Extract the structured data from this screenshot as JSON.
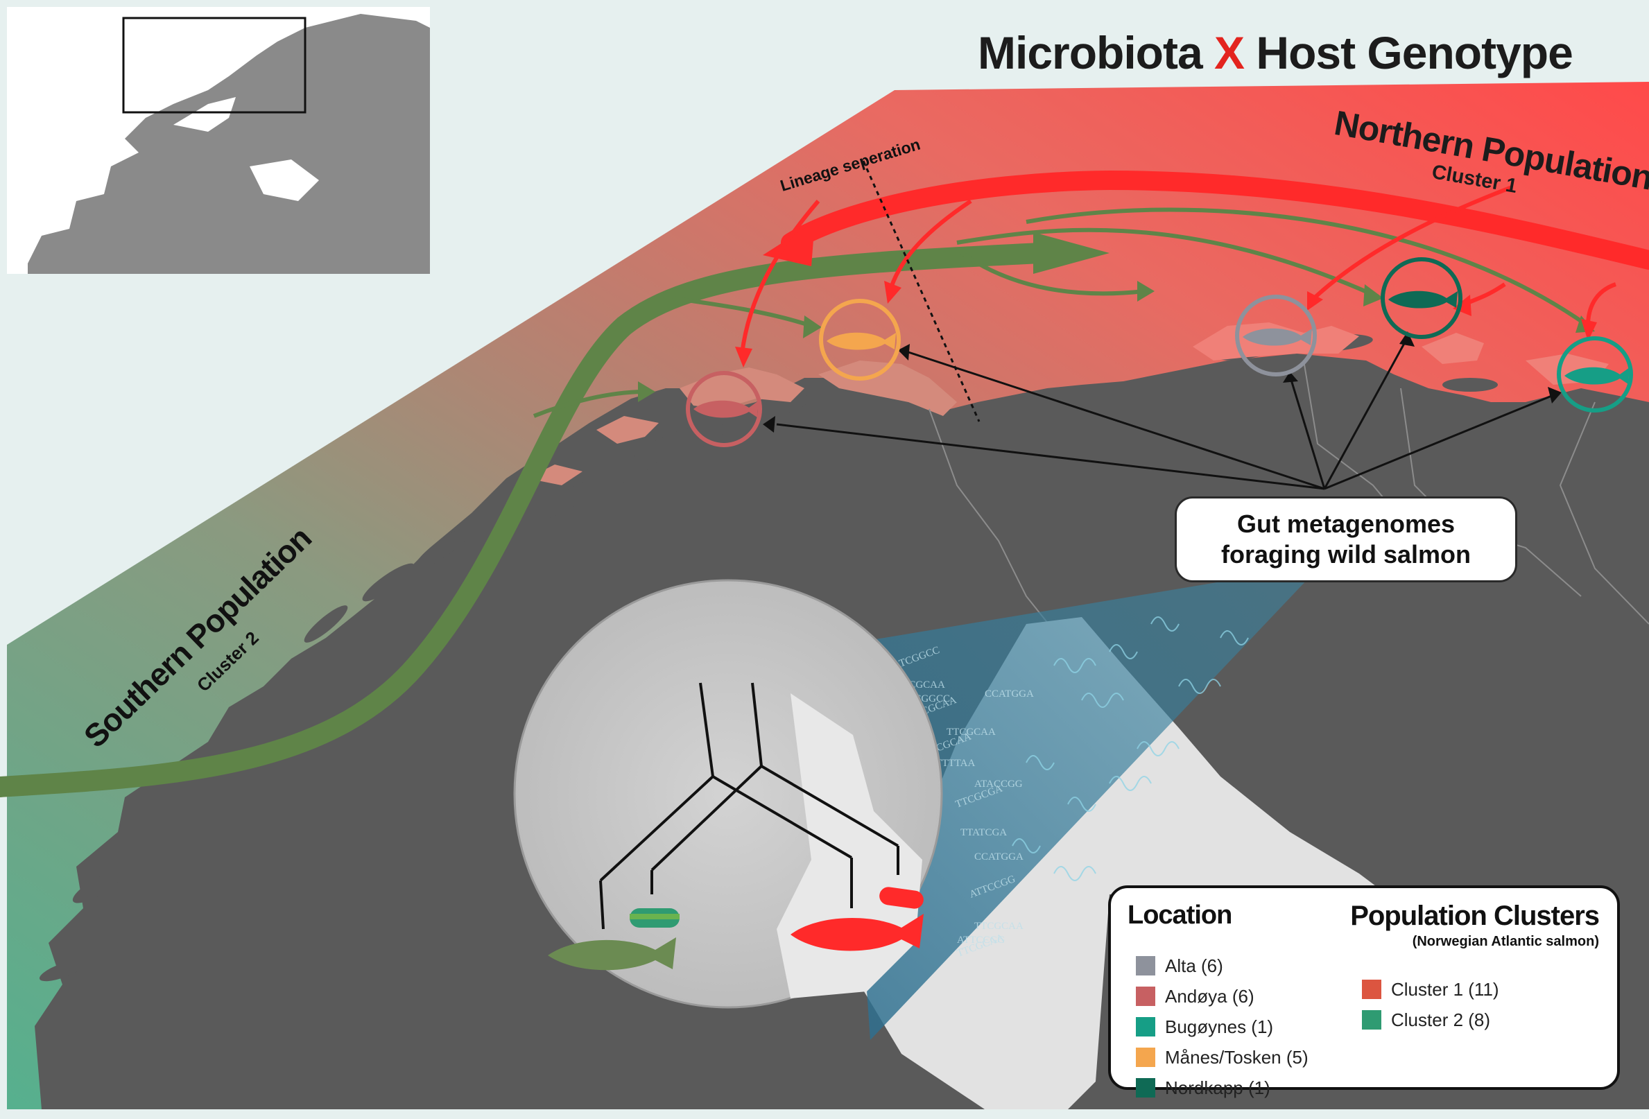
{
  "title": {
    "left": "Microbiota",
    "mid": "X",
    "right": "Host Genotype"
  },
  "labels": {
    "north": "Northern Population",
    "north_sub": "Cluster 1",
    "south": "Southern Population",
    "south_sub": "Cluster 2",
    "lineage": "Lineage seperation"
  },
  "callout": {
    "line1": "Gut metagenomes",
    "line2": "foraging wild salmon"
  },
  "dna_sequences": [
    "ATCGGCC",
    "TTCGCAA",
    "ATCGGCC",
    "CCCGCAA",
    "CCATGGA",
    "TTCGCAA",
    "TTCGCAA",
    "ATTTTAA",
    "ATACCGG",
    "TTCGCGA",
    "TTATCGA",
    "CCATGGA",
    "ATTCCGG",
    "TTCGCAA",
    "ATTCCGG",
    "TTCGCAA"
  ],
  "legend": {
    "location_title": "Location",
    "clusters_title": "Population Clusters",
    "clusters_subtitle": "(Norwegian Atlantic salmon)",
    "locations": [
      {
        "label": "Alta (6)",
        "color": "#8e929c"
      },
      {
        "label": "Andøya (6)",
        "color": "#c76062"
      },
      {
        "label": "Bugøynes (1)",
        "color": "#169e86"
      },
      {
        "label": "Månes/Tosken (5)",
        "color": "#f4a64e"
      },
      {
        "label": "Nordkapp (1)",
        "color": "#0f6a55"
      }
    ],
    "clusters": [
      {
        "label": "Cluster 1 (11)",
        "color": "#dc5540"
      },
      {
        "label": "Cluster 2 (8)",
        "color": "#2f9b72"
      }
    ]
  },
  "colors": {
    "sea": "#e6f0ef",
    "land": "#5a5a5a",
    "north_red": "#ff2a2a",
    "south_green": "#5f8448",
    "inset_land": "#8a8a8a"
  }
}
